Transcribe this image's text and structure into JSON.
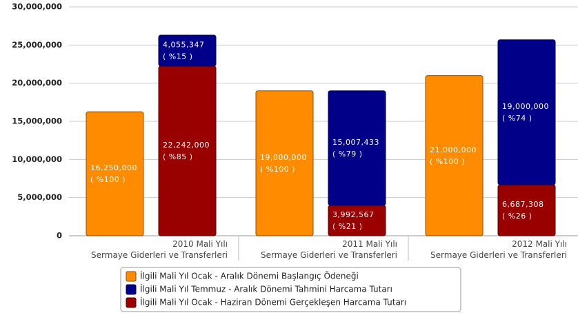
{
  "chart_data": {
    "type": "bar",
    "categories": [
      "2010 Mali Yılı\nSermaye Giderleri ve Transferleri",
      "2011 Mali Yılı\nSermaye Giderleri ve Transferleri",
      "2012 Mali Yılı\nSermaye Giderleri ve Transferleri"
    ],
    "series": [
      {
        "name": "İlgili Mali Yıl Ocak - Aralık Dönemi Başlangıç Ödeneği",
        "color": "#ff8c00",
        "stack": "a",
        "values": [
          16250000,
          19000000,
          21000000
        ],
        "value_labels": [
          "16,250,000\n( %100 )",
          "19,000,000\n( %100 )",
          "21,000,000\n( %100 )"
        ]
      },
      {
        "name": "İlgili Mali Yıl Temmuz - Aralık Dönemi Tahmini Harcama Tutarı",
        "color": "#000088",
        "stack": "b",
        "values": [
          4055347,
          15007433,
          19000000
        ],
        "value_labels": [
          "4,055,347\n( %15 )",
          "15,007,433\n( %79 )",
          "19,000,000\n( %74 )"
        ]
      },
      {
        "name": "İlgili Mali Yıl Ocak - Haziran Dönemi Gerçekleşen Harcama Tutarı",
        "color": "#990000",
        "stack": "b",
        "values": [
          22242000,
          3992567,
          6687308
        ],
        "value_labels": [
          "22,242,000\n( %85 )",
          "3,992,567\n( %21 )",
          "6,687,308\n( %26 )"
        ]
      }
    ],
    "ylim": [
      0,
      30000000
    ],
    "yticks": [
      0,
      {
        "value": 5000000,
        "label": "5,000,000"
      },
      {
        "value": 10000000,
        "label": "10,000,000"
      },
      {
        "value": 15000000,
        "label": "15,000,000"
      },
      {
        "value": 20000000,
        "label": "20,000,000"
      },
      {
        "value": 25000000,
        "label": "25,000,000"
      },
      {
        "value": 30000000,
        "label": "30,000,000"
      }
    ],
    "grid": true,
    "legend": "bottom"
  }
}
